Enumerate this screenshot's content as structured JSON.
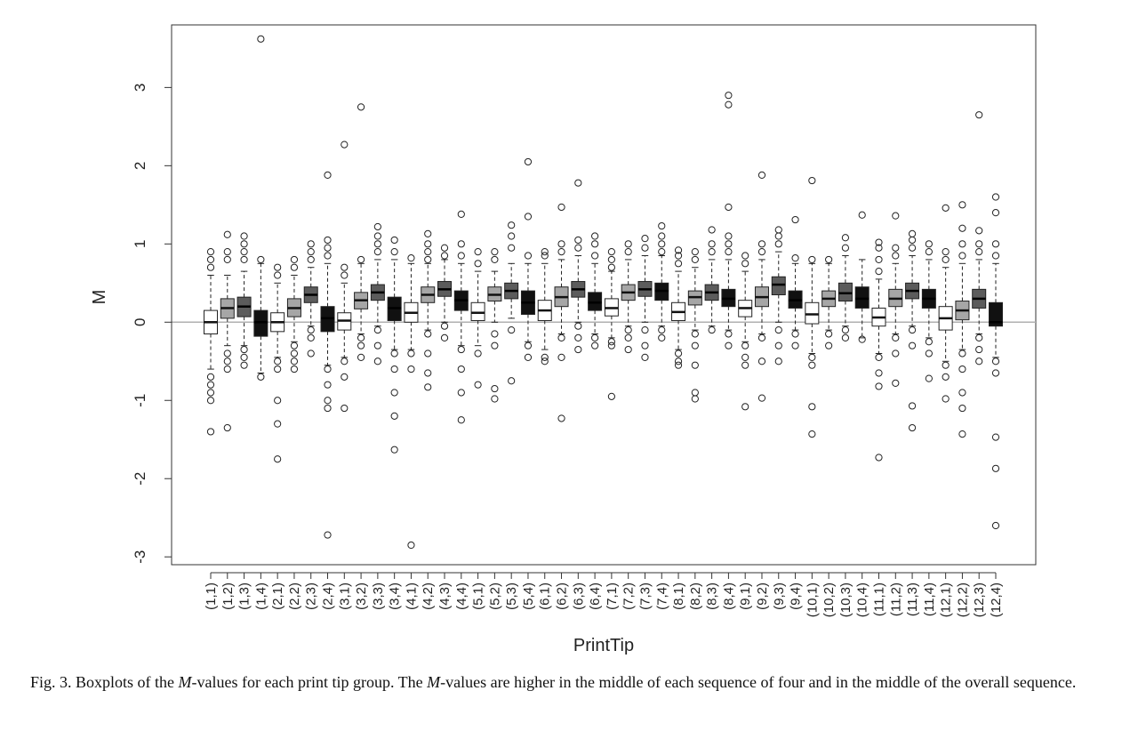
{
  "chart_data": {
    "type": "boxplot",
    "xlabel": "PrintTip",
    "ylabel": "M",
    "ylim": [
      -3.1,
      3.8
    ],
    "yticks": [
      -3,
      -2,
      -1,
      0,
      1,
      2,
      3
    ],
    "reference_line": 0,
    "colors": {
      "white": "#ffffff",
      "lightgray": "#a6a6a6",
      "darkgray": "#5c5c5c",
      "black": "#111111",
      "refline": "#b0b0b0"
    },
    "fill_by_position_in_row": [
      "white",
      "lightgray",
      "darkgray",
      "black"
    ],
    "categories": [
      "(1,1)",
      "(1,2)",
      "(1,3)",
      "(1,4)",
      "(2,1)",
      "(2,2)",
      "(2,3)",
      "(2,4)",
      "(3,1)",
      "(3,2)",
      "(3,3)",
      "(3,4)",
      "(4,1)",
      "(4,2)",
      "(4,3)",
      "(4,4)",
      "(5,1)",
      "(5,2)",
      "(5,3)",
      "(5,4)",
      "(6,1)",
      "(6,2)",
      "(6,3)",
      "(6,4)",
      "(7,1)",
      "(7,2)",
      "(7,3)",
      "(7,4)",
      "(8,1)",
      "(8,2)",
      "(8,3)",
      "(8,4)",
      "(9,1)",
      "(9,2)",
      "(9,3)",
      "(9,4)",
      "(10,1)",
      "(10,2)",
      "(10,3)",
      "(10,4)",
      "(11,1)",
      "(11,2)",
      "(11,3)",
      "(11,4)",
      "(12,1)",
      "(12,2)",
      "(12,3)",
      "(12,4)"
    ],
    "boxes": [
      {
        "q1": -0.15,
        "median": 0.0,
        "q3": 0.15,
        "wlo": -0.6,
        "whi": 0.6,
        "outliers": [
          0.7,
          0.8,
          0.9,
          -0.7,
          -0.8,
          -0.9,
          -1.0,
          -1.4
        ]
      },
      {
        "q1": 0.05,
        "median": 0.18,
        "q3": 0.3,
        "wlo": -0.3,
        "whi": 0.6,
        "outliers": [
          0.8,
          0.9,
          1.12,
          -0.4,
          -0.5,
          -0.6,
          -1.35
        ]
      },
      {
        "q1": 0.07,
        "median": 0.2,
        "q3": 0.32,
        "wlo": -0.3,
        "whi": 0.65,
        "outliers": [
          0.8,
          0.9,
          1.0,
          1.1,
          -0.35,
          -0.45,
          -0.55
        ]
      },
      {
        "q1": -0.18,
        "median": 0.0,
        "q3": 0.15,
        "wlo": -0.65,
        "whi": 0.75,
        "outliers": [
          0.8,
          -0.7,
          3.62
        ]
      },
      {
        "q1": -0.12,
        "median": 0.0,
        "q3": 0.12,
        "wlo": -0.45,
        "whi": 0.5,
        "outliers": [
          0.6,
          0.7,
          -0.5,
          -0.6,
          -1.0,
          -1.3,
          -1.75
        ]
      },
      {
        "q1": 0.07,
        "median": 0.18,
        "q3": 0.3,
        "wlo": -0.25,
        "whi": 0.6,
        "outliers": [
          0.7,
          0.8,
          -0.3,
          -0.4,
          -0.5,
          -0.6
        ]
      },
      {
        "q1": 0.25,
        "median": 0.35,
        "q3": 0.45,
        "wlo": -0.05,
        "whi": 0.7,
        "outliers": [
          0.8,
          0.9,
          1.0,
          -0.1,
          -0.2,
          -0.4
        ]
      },
      {
        "q1": -0.12,
        "median": 0.05,
        "q3": 0.2,
        "wlo": -0.55,
        "whi": 0.75,
        "outliers": [
          0.85,
          0.95,
          1.05,
          1.88,
          -0.6,
          -0.8,
          -1.0,
          -1.1,
          -2.72
        ]
      },
      {
        "q1": -0.1,
        "median": 0.02,
        "q3": 0.12,
        "wlo": -0.45,
        "whi": 0.5,
        "outliers": [
          0.6,
          0.7,
          -0.5,
          -0.7,
          -1.1,
          2.27
        ]
      },
      {
        "q1": 0.17,
        "median": 0.28,
        "q3": 0.38,
        "wlo": -0.15,
        "whi": 0.75,
        "outliers": [
          0.8,
          -0.2,
          -0.3,
          -0.45,
          2.75
        ]
      },
      {
        "q1": 0.28,
        "median": 0.38,
        "q3": 0.48,
        "wlo": -0.05,
        "whi": 0.8,
        "outliers": [
          0.9,
          1.0,
          1.1,
          1.22,
          -0.1,
          -0.3,
          -0.5
        ]
      },
      {
        "q1": 0.02,
        "median": 0.18,
        "q3": 0.32,
        "wlo": -0.35,
        "whi": 0.8,
        "outliers": [
          0.9,
          1.05,
          -0.4,
          -0.6,
          -0.9,
          -1.2,
          -1.63
        ]
      },
      {
        "q1": 0.0,
        "median": 0.12,
        "q3": 0.25,
        "wlo": -0.35,
        "whi": 0.75,
        "outliers": [
          0.82,
          -0.4,
          -0.6,
          -2.85
        ]
      },
      {
        "q1": 0.25,
        "median": 0.35,
        "q3": 0.45,
        "wlo": -0.1,
        "whi": 0.75,
        "outliers": [
          0.8,
          0.9,
          1.0,
          1.13,
          -0.15,
          -0.4,
          -0.65,
          -0.83
        ]
      },
      {
        "q1": 0.33,
        "median": 0.42,
        "q3": 0.52,
        "wlo": 0.0,
        "whi": 0.8,
        "outliers": [
          0.85,
          0.95,
          -0.05,
          -0.2
        ]
      },
      {
        "q1": 0.15,
        "median": 0.28,
        "q3": 0.4,
        "wlo": -0.3,
        "whi": 0.75,
        "outliers": [
          0.85,
          1.0,
          1.38,
          -0.35,
          -0.6,
          -0.9,
          -1.25
        ]
      },
      {
        "q1": 0.02,
        "median": 0.12,
        "q3": 0.25,
        "wlo": -0.3,
        "whi": 0.65,
        "outliers": [
          0.75,
          0.9,
          -0.4,
          -0.8
        ]
      },
      {
        "q1": 0.27,
        "median": 0.35,
        "q3": 0.45,
        "wlo": 0.0,
        "whi": 0.65,
        "outliers": [
          0.8,
          0.9,
          -0.15,
          -0.3,
          -0.85,
          -0.98
        ]
      },
      {
        "q1": 0.3,
        "median": 0.4,
        "q3": 0.5,
        "wlo": 0.05,
        "whi": 0.75,
        "outliers": [
          0.95,
          1.1,
          1.24,
          -0.1,
          -0.75
        ]
      },
      {
        "q1": 0.1,
        "median": 0.25,
        "q3": 0.4,
        "wlo": -0.25,
        "whi": 0.75,
        "outliers": [
          0.85,
          1.35,
          2.05,
          -0.3,
          -0.45
        ]
      },
      {
        "q1": 0.02,
        "median": 0.15,
        "q3": 0.28,
        "wlo": -0.35,
        "whi": 0.75,
        "outliers": [
          0.85,
          0.9,
          -0.45,
          -0.5
        ]
      },
      {
        "q1": 0.2,
        "median": 0.32,
        "q3": 0.45,
        "wlo": -0.15,
        "whi": 0.8,
        "outliers": [
          0.9,
          1.0,
          1.47,
          -0.2,
          -0.45,
          -1.23
        ]
      },
      {
        "q1": 0.32,
        "median": 0.42,
        "q3": 0.52,
        "wlo": 0.0,
        "whi": 0.85,
        "outliers": [
          0.95,
          1.05,
          1.78,
          -0.05,
          -0.2,
          -0.35
        ]
      },
      {
        "q1": 0.15,
        "median": 0.25,
        "q3": 0.38,
        "wlo": -0.15,
        "whi": 0.75,
        "outliers": [
          0.85,
          1.0,
          1.1,
          -0.2,
          -0.3
        ]
      },
      {
        "q1": 0.08,
        "median": 0.18,
        "q3": 0.3,
        "wlo": -0.2,
        "whi": 0.65,
        "outliers": [
          0.7,
          0.8,
          0.9,
          -0.25,
          -0.3,
          -0.95
        ]
      },
      {
        "q1": 0.28,
        "median": 0.38,
        "q3": 0.48,
        "wlo": -0.05,
        "whi": 0.8,
        "outliers": [
          0.9,
          1.0,
          -0.1,
          -0.2,
          -0.35
        ]
      },
      {
        "q1": 0.33,
        "median": 0.42,
        "q3": 0.52,
        "wlo": 0.0,
        "whi": 0.85,
        "outliers": [
          0.95,
          1.07,
          -0.1,
          -0.3,
          -0.45
        ]
      },
      {
        "q1": 0.28,
        "median": 0.4,
        "q3": 0.5,
        "wlo": -0.05,
        "whi": 0.85,
        "outliers": [
          0.9,
          1.0,
          1.1,
          1.23,
          -0.1,
          -0.2
        ]
      },
      {
        "q1": 0.02,
        "median": 0.13,
        "q3": 0.25,
        "wlo": -0.35,
        "whi": 0.65,
        "outliers": [
          0.75,
          0.85,
          0.92,
          -0.4,
          -0.5,
          -0.55
        ]
      },
      {
        "q1": 0.22,
        "median": 0.32,
        "q3": 0.4,
        "wlo": -0.1,
        "whi": 0.7,
        "outliers": [
          0.8,
          0.9,
          -0.15,
          -0.3,
          -0.55,
          -0.9,
          -0.98
        ]
      },
      {
        "q1": 0.28,
        "median": 0.38,
        "q3": 0.48,
        "wlo": -0.05,
        "whi": 0.8,
        "outliers": [
          0.9,
          1.0,
          1.18,
          -0.1
        ]
      },
      {
        "q1": 0.2,
        "median": 0.3,
        "q3": 0.42,
        "wlo": -0.1,
        "whi": 0.8,
        "outliers": [
          0.9,
          1.0,
          1.1,
          1.47,
          2.78,
          2.9,
          -0.15,
          -0.3
        ]
      },
      {
        "q1": 0.07,
        "median": 0.18,
        "q3": 0.28,
        "wlo": -0.25,
        "whi": 0.65,
        "outliers": [
          0.75,
          0.85,
          -0.3,
          -0.45,
          -0.55,
          -1.08
        ]
      },
      {
        "q1": 0.2,
        "median": 0.32,
        "q3": 0.45,
        "wlo": -0.15,
        "whi": 0.8,
        "outliers": [
          0.9,
          1.0,
          1.88,
          -0.2,
          -0.5,
          -0.97
        ]
      },
      {
        "q1": 0.35,
        "median": 0.48,
        "q3": 0.58,
        "wlo": 0.0,
        "whi": 0.9,
        "outliers": [
          1.0,
          1.1,
          1.18,
          -0.1,
          -0.3,
          -0.5
        ]
      },
      {
        "q1": 0.18,
        "median": 0.28,
        "q3": 0.4,
        "wlo": -0.1,
        "whi": 0.75,
        "outliers": [
          0.82,
          1.31,
          -0.15,
          -0.3
        ]
      },
      {
        "q1": -0.02,
        "median": 0.1,
        "q3": 0.25,
        "wlo": -0.4,
        "whi": 0.75,
        "outliers": [
          0.8,
          1.81,
          -0.45,
          -0.55,
          -1.08,
          -1.43
        ]
      },
      {
        "q1": 0.2,
        "median": 0.3,
        "q3": 0.4,
        "wlo": -0.1,
        "whi": 0.75,
        "outliers": [
          0.8,
          -0.15,
          -0.3
        ]
      },
      {
        "q1": 0.27,
        "median": 0.37,
        "q3": 0.5,
        "wlo": -0.05,
        "whi": 0.85,
        "outliers": [
          0.95,
          1.08,
          -0.1,
          -0.2
        ]
      },
      {
        "q1": 0.18,
        "median": 0.3,
        "q3": 0.45,
        "wlo": -0.2,
        "whi": 0.8,
        "outliers": [
          1.37,
          -0.22
        ]
      },
      {
        "q1": -0.05,
        "median": 0.06,
        "q3": 0.18,
        "wlo": -0.4,
        "whi": 0.55,
        "outliers": [
          0.65,
          0.8,
          0.95,
          1.02,
          -0.45,
          -0.65,
          -0.82,
          -1.73
        ]
      },
      {
        "q1": 0.2,
        "median": 0.3,
        "q3": 0.42,
        "wlo": -0.15,
        "whi": 0.75,
        "outliers": [
          0.85,
          0.95,
          1.36,
          -0.2,
          -0.4,
          -0.78
        ]
      },
      {
        "q1": 0.3,
        "median": 0.4,
        "q3": 0.5,
        "wlo": -0.05,
        "whi": 0.85,
        "outliers": [
          0.95,
          1.05,
          1.13,
          -0.1,
          -0.3,
          -1.07,
          -1.35
        ]
      },
      {
        "q1": 0.18,
        "median": 0.3,
        "q3": 0.42,
        "wlo": -0.2,
        "whi": 0.8,
        "outliers": [
          0.9,
          1.0,
          -0.25,
          -0.4,
          -0.72
        ]
      },
      {
        "q1": -0.1,
        "median": 0.05,
        "q3": 0.2,
        "wlo": -0.5,
        "whi": 0.7,
        "outliers": [
          0.8,
          0.9,
          1.46,
          -0.55,
          -0.7,
          -0.98
        ]
      },
      {
        "q1": 0.03,
        "median": 0.15,
        "q3": 0.27,
        "wlo": -0.35,
        "whi": 0.75,
        "outliers": [
          0.85,
          1.0,
          1.2,
          1.5,
          -0.4,
          -0.6,
          -0.9,
          -1.1,
          -1.43
        ]
      },
      {
        "q1": 0.18,
        "median": 0.3,
        "q3": 0.42,
        "wlo": -0.15,
        "whi": 0.8,
        "outliers": [
          0.9,
          1.0,
          1.17,
          2.65,
          -0.2,
          -0.35,
          -0.5
        ]
      },
      {
        "q1": -0.05,
        "median": 0.0,
        "q3": 0.25,
        "wlo": -0.45,
        "whi": 0.75,
        "outliers": [
          0.85,
          1.0,
          1.4,
          1.6,
          -0.5,
          -0.65,
          -1.47,
          -1.87,
          -2.6
        ]
      }
    ]
  },
  "caption": {
    "text": "Fig. 3. Boxplots of the M-values for each print tip group. The M-values are higher in the middle of each sequence of four and in the middle of the overall sequence."
  }
}
